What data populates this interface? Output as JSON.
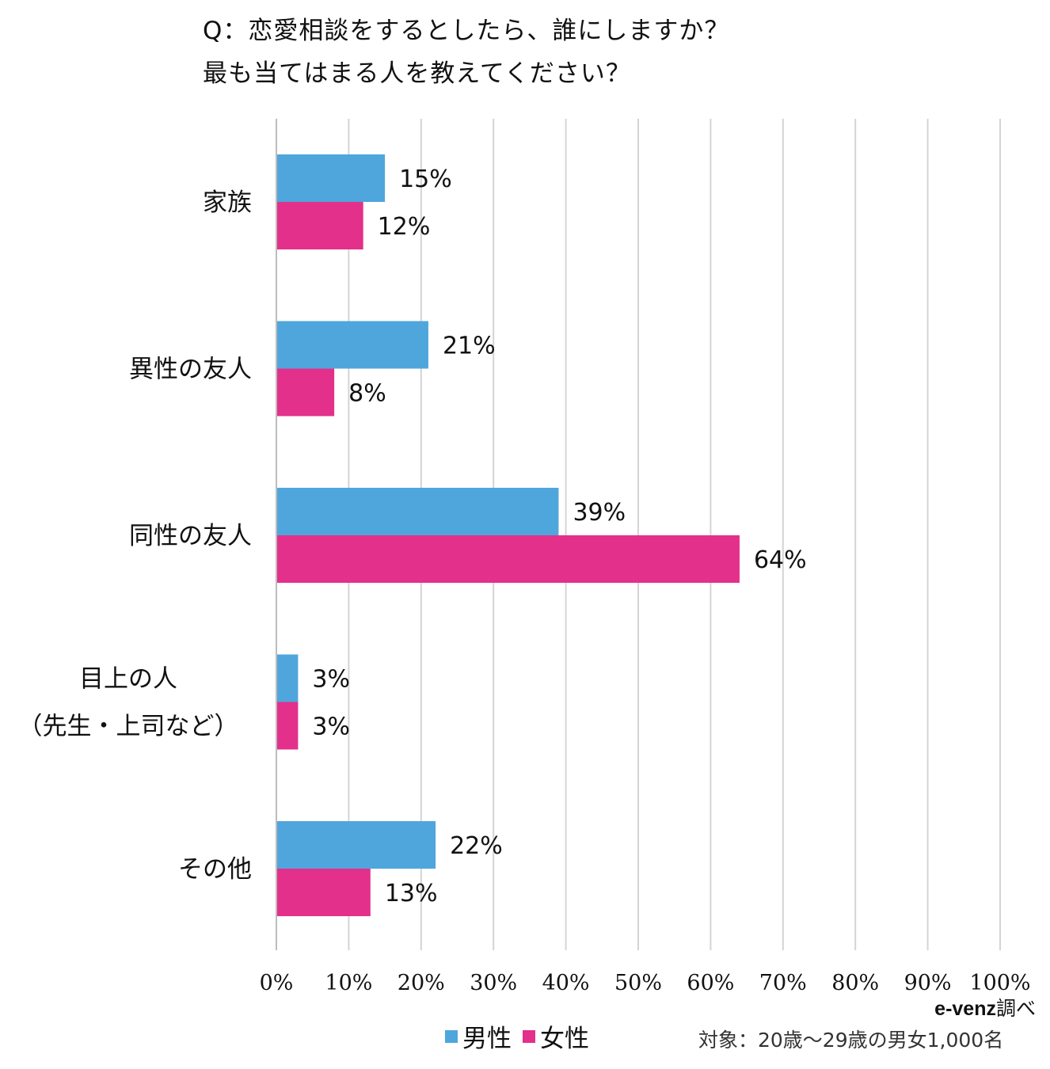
{
  "title_lines": [
    "Q：恋愛相談をするとしたら、誰にしますか？",
    "最も当てはまる人を教えてください？"
  ],
  "credit": {
    "brand": "e-venz",
    "suffix": "調べ"
  },
  "target_text": "対象：20歳〜29歳の男女1,000名",
  "colors": {
    "male": "#4fa6dc",
    "female": "#e3308b",
    "grid": "#d4d4d4"
  },
  "chart_data": {
    "type": "bar",
    "orientation": "horizontal",
    "categories": [
      [
        "家族"
      ],
      [
        "異性の友人"
      ],
      [
        "同性の友人"
      ],
      [
        "目上の人",
        "（先生・上司など）"
      ],
      [
        "その他"
      ]
    ],
    "series": [
      {
        "name": "男性",
        "values": [
          15,
          21,
          39,
          3,
          22
        ],
        "labels": [
          "15%",
          "21%",
          "39%",
          "3%",
          "22%"
        ]
      },
      {
        "name": "女性",
        "values": [
          12,
          8,
          64,
          3,
          13
        ],
        "labels": [
          "12%",
          "8%",
          "64%",
          "3%",
          "13%"
        ]
      }
    ],
    "xlim": [
      0,
      100
    ],
    "x_ticks": [
      "0%",
      "10%",
      "20%",
      "30%",
      "40%",
      "50%",
      "60%",
      "70%",
      "80%",
      "90%",
      "100%"
    ],
    "grid": true,
    "legend_position": "bottom"
  }
}
